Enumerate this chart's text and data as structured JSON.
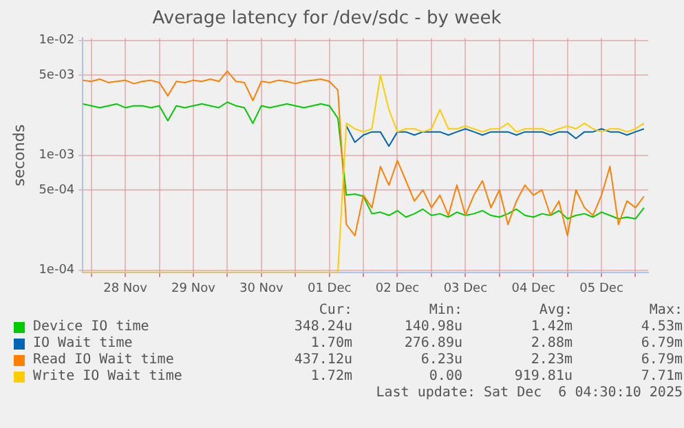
{
  "chart_data": {
    "type": "line",
    "title": "Average latency for /dev/sdc - by week",
    "ylabel": "seconds",
    "log": "y",
    "grid": true,
    "legend": "bottom",
    "marker": "none",
    "line_style": "solid",
    "x": [
      "2025-11-27T21:00",
      "2025-11-28T00:00",
      "2025-11-28T03:00",
      "2025-11-28T06:00",
      "2025-11-28T09:00",
      "2025-11-28T12:00",
      "2025-11-28T15:00",
      "2025-11-28T18:00",
      "2025-11-28T21:00",
      "2025-11-29T00:00",
      "2025-11-29T03:00",
      "2025-11-29T06:00",
      "2025-11-29T09:00",
      "2025-11-29T12:00",
      "2025-11-29T15:00",
      "2025-11-29T18:00",
      "2025-11-29T21:00",
      "2025-11-30T00:00",
      "2025-11-30T03:00",
      "2025-11-30T06:00",
      "2025-11-30T09:00",
      "2025-11-30T12:00",
      "2025-11-30T15:00",
      "2025-11-30T18:00",
      "2025-11-30T21:00",
      "2025-12-01T00:00",
      "2025-12-01T03:00",
      "2025-12-01T06:00",
      "2025-12-01T09:00",
      "2025-12-01T12:00",
      "2025-12-01T15:00",
      "2025-12-01T18:00",
      "2025-12-01T21:00",
      "2025-12-02T00:00",
      "2025-12-02T03:00",
      "2025-12-02T06:00",
      "2025-12-02T09:00",
      "2025-12-02T12:00",
      "2025-12-02T15:00",
      "2025-12-02T18:00",
      "2025-12-02T21:00",
      "2025-12-03T00:00",
      "2025-12-03T03:00",
      "2025-12-03T06:00",
      "2025-12-03T09:00",
      "2025-12-03T12:00",
      "2025-12-03T15:00",
      "2025-12-03T18:00",
      "2025-12-03T21:00",
      "2025-12-04T00:00",
      "2025-12-04T03:00",
      "2025-12-04T06:00",
      "2025-12-04T09:00",
      "2025-12-04T12:00",
      "2025-12-04T15:00",
      "2025-12-04T18:00",
      "2025-12-04T21:00",
      "2025-12-05T00:00",
      "2025-12-05T03:00",
      "2025-12-05T06:00",
      "2025-12-05T09:00",
      "2025-12-05T12:00",
      "2025-12-05T15:00",
      "2025-12-05T18:00",
      "2025-12-05T21:00",
      "2025-12-06T00:00",
      "2025-12-06T03:00"
    ],
    "xlim": [
      "2025-11-27T21:00",
      "2025-12-06T04:30"
    ],
    "xticks": [
      {
        "value": "2025-11-28T00:00",
        "label": null
      },
      {
        "value": "2025-11-28T12:00",
        "label": "28 Nov"
      },
      {
        "value": "2025-11-29T00:00",
        "label": null
      },
      {
        "value": "2025-11-29T12:00",
        "label": "29 Nov"
      },
      {
        "value": "2025-11-30T00:00",
        "label": null
      },
      {
        "value": "2025-11-30T12:00",
        "label": "30 Nov"
      },
      {
        "value": "2025-12-01T00:00",
        "label": null
      },
      {
        "value": "2025-12-01T12:00",
        "label": "01 Dec"
      },
      {
        "value": "2025-12-02T00:00",
        "label": null
      },
      {
        "value": "2025-12-02T12:00",
        "label": "02 Dec"
      },
      {
        "value": "2025-12-03T00:00",
        "label": null
      },
      {
        "value": "2025-12-03T12:00",
        "label": "03 Dec"
      },
      {
        "value": "2025-12-04T00:00",
        "label": null
      },
      {
        "value": "2025-12-04T12:00",
        "label": "04 Dec"
      },
      {
        "value": "2025-12-05T00:00",
        "label": null
      },
      {
        "value": "2025-12-05T12:00",
        "label": "05 Dec"
      },
      {
        "value": "2025-12-06T00:00",
        "label": null
      }
    ],
    "ylim": [
      9.5e-05,
      0.0105
    ],
    "yticks": [
      {
        "value": 0.0001,
        "label": "1e-04"
      },
      {
        "value": 0.0005,
        "label": "5e-04"
      },
      {
        "value": 0.001,
        "label": "1e-03"
      },
      {
        "value": 0.005,
        "label": "5e-03"
      },
      {
        "value": 0.01,
        "label": "1e-02"
      }
    ],
    "series": [
      {
        "name": "Device IO time",
        "color": "#00cc00",
        "values": [
          0.0028,
          0.0027,
          0.0026,
          0.0027,
          0.0028,
          0.0026,
          0.0027,
          0.0027,
          0.0026,
          0.0027,
          0.002,
          0.0027,
          0.0026,
          0.0027,
          0.0028,
          0.0027,
          0.0026,
          0.0029,
          0.0027,
          0.0026,
          0.0019,
          0.0027,
          0.0026,
          0.0027,
          0.0028,
          0.0027,
          0.0026,
          0.0027,
          0.0028,
          0.0027,
          0.0021,
          0.00045,
          0.00046,
          0.00044,
          0.00031,
          0.00032,
          0.0003,
          0.00033,
          0.00029,
          0.00031,
          0.00034,
          0.0003,
          0.00031,
          0.00029,
          0.00032,
          0.0003,
          0.00031,
          0.00033,
          0.0003,
          0.00029,
          0.00031,
          0.00034,
          0.0003,
          0.00029,
          0.00031,
          0.0003,
          0.00033,
          0.00028,
          0.0003,
          0.00031,
          0.00029,
          0.00032,
          0.0003,
          0.00028,
          0.00029,
          0.00028,
          0.00035
        ]
      },
      {
        "name": "IO Wait time",
        "color": "#0066b3",
        "values": [
          null,
          null,
          null,
          null,
          null,
          null,
          null,
          null,
          null,
          null,
          null,
          null,
          null,
          null,
          null,
          null,
          null,
          null,
          null,
          null,
          null,
          null,
          null,
          null,
          null,
          null,
          null,
          null,
          null,
          null,
          null,
          0.0018,
          0.0013,
          0.0015,
          0.0016,
          0.0016,
          0.0012,
          0.0016,
          0.0016,
          0.0015,
          0.0016,
          0.0016,
          0.0016,
          0.0015,
          0.0016,
          0.0017,
          0.0016,
          0.0015,
          0.0016,
          0.0016,
          0.0016,
          0.0015,
          0.0016,
          0.0016,
          0.0016,
          0.0015,
          0.0016,
          0.0016,
          0.0014,
          0.0016,
          0.0016,
          0.0017,
          0.0016,
          0.0016,
          0.0015,
          0.0016,
          0.0017
        ]
      },
      {
        "name": "Read IO Wait time",
        "color": "#ff8000",
        "values": [
          0.0045,
          0.0044,
          0.0046,
          0.0043,
          0.0044,
          0.0045,
          0.0042,
          0.0044,
          0.0045,
          0.0043,
          0.0033,
          0.0044,
          0.0043,
          0.0045,
          0.0044,
          0.0046,
          0.0044,
          0.0054,
          0.0044,
          0.0043,
          0.003,
          0.0044,
          0.0043,
          0.0045,
          0.0044,
          0.0042,
          0.0044,
          0.0045,
          0.0046,
          0.0044,
          0.0037,
          0.00025,
          0.0002,
          0.00045,
          0.00035,
          0.0008,
          0.00055,
          0.0009,
          0.0006,
          0.0004,
          0.0005,
          0.00035,
          0.00045,
          0.0003,
          0.00055,
          0.0003,
          0.00045,
          0.0006,
          0.00035,
          0.0005,
          0.00025,
          0.0004,
          0.00055,
          0.00045,
          0.0005,
          0.0003,
          0.0004,
          0.0002,
          0.0005,
          0.00035,
          0.0003,
          0.00045,
          0.0008,
          0.00025,
          0.0004,
          0.00035,
          0.00044
        ]
      },
      {
        "name": "Write IO Wait time",
        "color": "#ffcc00",
        "values": [
          9.6e-05,
          9.6e-05,
          9.6e-05,
          9.6e-05,
          9.6e-05,
          9.6e-05,
          9.6e-05,
          9.6e-05,
          9.6e-05,
          9.6e-05,
          9.6e-05,
          9.6e-05,
          9.6e-05,
          9.6e-05,
          9.6e-05,
          9.6e-05,
          9.6e-05,
          9.6e-05,
          9.6e-05,
          9.6e-05,
          9.6e-05,
          9.6e-05,
          9.6e-05,
          9.6e-05,
          9.6e-05,
          9.6e-05,
          9.6e-05,
          9.6e-05,
          9.6e-05,
          9.6e-05,
          9.6e-05,
          0.0019,
          0.0017,
          0.0016,
          0.0017,
          0.005,
          0.0025,
          0.0016,
          0.0017,
          0.0017,
          0.0016,
          0.0017,
          0.0025,
          0.0017,
          0.0017,
          0.0018,
          0.0017,
          0.0016,
          0.0017,
          0.0017,
          0.0019,
          0.0016,
          0.0017,
          0.0017,
          0.0017,
          0.0016,
          0.0017,
          0.0018,
          0.0017,
          0.0019,
          0.0017,
          0.0016,
          0.0017,
          0.0017,
          0.0016,
          0.0017,
          0.0019
        ]
      }
    ],
    "annotations": [
      "Cur:",
      "Min:",
      "Avg:",
      "Max:",
      "348.24u",
      "140.98u",
      "1.42m",
      "4.53m",
      "1.70m",
      "276.89u",
      "2.88m",
      "6.79m",
      "437.12u",
      "6.23u",
      "2.23m",
      "6.79m",
      "1.72m",
      "0.00",
      "919.81u",
      "7.71m",
      "Last update: Sat Dec  6 04:30:10 2025"
    ]
  }
}
